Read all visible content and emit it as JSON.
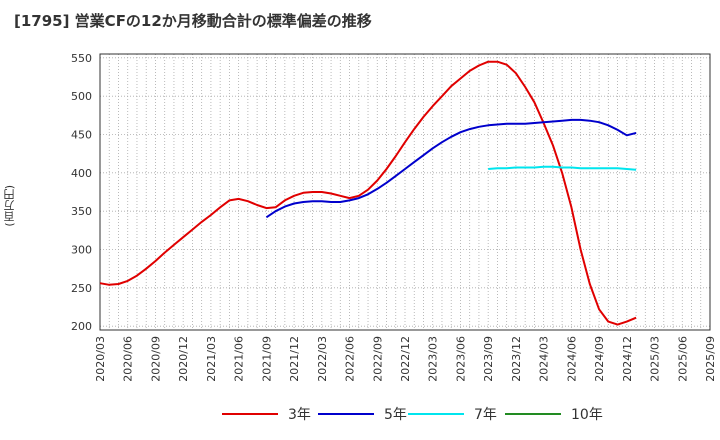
{
  "title": "[1795]  営業CFの12か月移動合計の標準偏差の推移",
  "chart_data": {
    "type": "line",
    "title": "[1795]  営業CFの12か月移動合計の標準偏差の推移",
    "ylabel": "(百万円)",
    "xlabel": "",
    "ylim": [
      195,
      555
    ],
    "yticks": [
      200,
      250,
      300,
      350,
      400,
      450,
      500,
      550
    ],
    "xticks": [
      "2020/03",
      "2020/06",
      "2020/09",
      "2020/12",
      "2021/03",
      "2021/06",
      "2021/09",
      "2021/12",
      "2022/03",
      "2022/06",
      "2022/09",
      "2022/12",
      "2023/03",
      "2023/06",
      "2023/09",
      "2023/12",
      "2024/03",
      "2024/06",
      "2024/09",
      "2024/12",
      "2025/03",
      "2025/06",
      "2025/09"
    ],
    "xlim": [
      "2020/03",
      "2025/09"
    ],
    "grid": true,
    "legend_position": "bottom",
    "series": [
      {
        "name": "3年",
        "color": "#e00000",
        "points": [
          [
            "2020/03",
            256
          ],
          [
            "2020/04",
            254
          ],
          [
            "2020/05",
            255
          ],
          [
            "2020/06",
            259
          ],
          [
            "2020/07",
            266
          ],
          [
            "2020/08",
            275
          ],
          [
            "2020/09",
            285
          ],
          [
            "2020/10",
            296
          ],
          [
            "2020/11",
            306
          ],
          [
            "2020/12",
            316
          ],
          [
            "2021/01",
            326
          ],
          [
            "2021/02",
            336
          ],
          [
            "2021/03",
            345
          ],
          [
            "2021/04",
            355
          ],
          [
            "2021/05",
            364
          ],
          [
            "2021/06",
            366
          ],
          [
            "2021/07",
            363
          ],
          [
            "2021/08",
            358
          ],
          [
            "2021/09",
            354
          ],
          [
            "2021/10",
            355
          ],
          [
            "2021/11",
            364
          ],
          [
            "2021/12",
            370
          ],
          [
            "2022/01",
            374
          ],
          [
            "2022/02",
            375
          ],
          [
            "2022/03",
            375
          ],
          [
            "2022/04",
            373
          ],
          [
            "2022/05",
            370
          ],
          [
            "2022/06",
            367
          ],
          [
            "2022/07",
            370
          ],
          [
            "2022/08",
            378
          ],
          [
            "2022/09",
            390
          ],
          [
            "2022/10",
            405
          ],
          [
            "2022/11",
            422
          ],
          [
            "2022/12",
            440
          ],
          [
            "2023/01",
            457
          ],
          [
            "2023/02",
            473
          ],
          [
            "2023/03",
            487
          ],
          [
            "2023/04",
            500
          ],
          [
            "2023/05",
            513
          ],
          [
            "2023/06",
            523
          ],
          [
            "2023/07",
            533
          ],
          [
            "2023/08",
            540
          ],
          [
            "2023/09",
            545
          ],
          [
            "2023/10",
            545
          ],
          [
            "2023/11",
            541
          ],
          [
            "2023/12",
            530
          ],
          [
            "2024/01",
            512
          ],
          [
            "2024/02",
            492
          ],
          [
            "2024/03",
            465
          ],
          [
            "2024/04",
            436
          ],
          [
            "2024/05",
            400
          ],
          [
            "2024/06",
            355
          ],
          [
            "2024/07",
            300
          ],
          [
            "2024/08",
            255
          ],
          [
            "2024/09",
            222
          ],
          [
            "2024/10",
            206
          ],
          [
            "2024/11",
            202
          ],
          [
            "2024/12",
            206
          ],
          [
            "2025/01",
            211
          ]
        ]
      },
      {
        "name": "5年",
        "color": "#0000cc",
        "points": [
          [
            "2021/09",
            342
          ],
          [
            "2021/10",
            350
          ],
          [
            "2021/11",
            356
          ],
          [
            "2021/12",
            360
          ],
          [
            "2022/01",
            362
          ],
          [
            "2022/02",
            363
          ],
          [
            "2022/03",
            363
          ],
          [
            "2022/04",
            362
          ],
          [
            "2022/05",
            362
          ],
          [
            "2022/06",
            364
          ],
          [
            "2022/07",
            367
          ],
          [
            "2022/08",
            372
          ],
          [
            "2022/09",
            379
          ],
          [
            "2022/10",
            387
          ],
          [
            "2022/11",
            396
          ],
          [
            "2022/12",
            405
          ],
          [
            "2023/01",
            414
          ],
          [
            "2023/02",
            423
          ],
          [
            "2023/03",
            432
          ],
          [
            "2023/04",
            440
          ],
          [
            "2023/05",
            447
          ],
          [
            "2023/06",
            453
          ],
          [
            "2023/07",
            457
          ],
          [
            "2023/08",
            460
          ],
          [
            "2023/09",
            462
          ],
          [
            "2023/10",
            463
          ],
          [
            "2023/11",
            464
          ],
          [
            "2023/12",
            464
          ],
          [
            "2024/01",
            464
          ],
          [
            "2024/02",
            465
          ],
          [
            "2024/03",
            466
          ],
          [
            "2024/04",
            467
          ],
          [
            "2024/05",
            468
          ],
          [
            "2024/06",
            469
          ],
          [
            "2024/07",
            469
          ],
          [
            "2024/08",
            468
          ],
          [
            "2024/09",
            466
          ],
          [
            "2024/10",
            462
          ],
          [
            "2024/11",
            456
          ],
          [
            "2024/12",
            449
          ],
          [
            "2025/01",
            452
          ]
        ]
      },
      {
        "name": "7年",
        "color": "#00e5ee",
        "points": [
          [
            "2023/09",
            405
          ],
          [
            "2023/10",
            406
          ],
          [
            "2023/11",
            406
          ],
          [
            "2023/12",
            407
          ],
          [
            "2024/01",
            407
          ],
          [
            "2024/02",
            407
          ],
          [
            "2024/03",
            408
          ],
          [
            "2024/04",
            408
          ],
          [
            "2024/05",
            407
          ],
          [
            "2024/06",
            407
          ],
          [
            "2024/07",
            406
          ],
          [
            "2024/08",
            406
          ],
          [
            "2024/09",
            406
          ],
          [
            "2024/10",
            406
          ],
          [
            "2024/11",
            406
          ],
          [
            "2024/12",
            405
          ],
          [
            "2025/01",
            404
          ]
        ]
      },
      {
        "name": "10年",
        "color": "#228b22",
        "points": []
      }
    ]
  }
}
